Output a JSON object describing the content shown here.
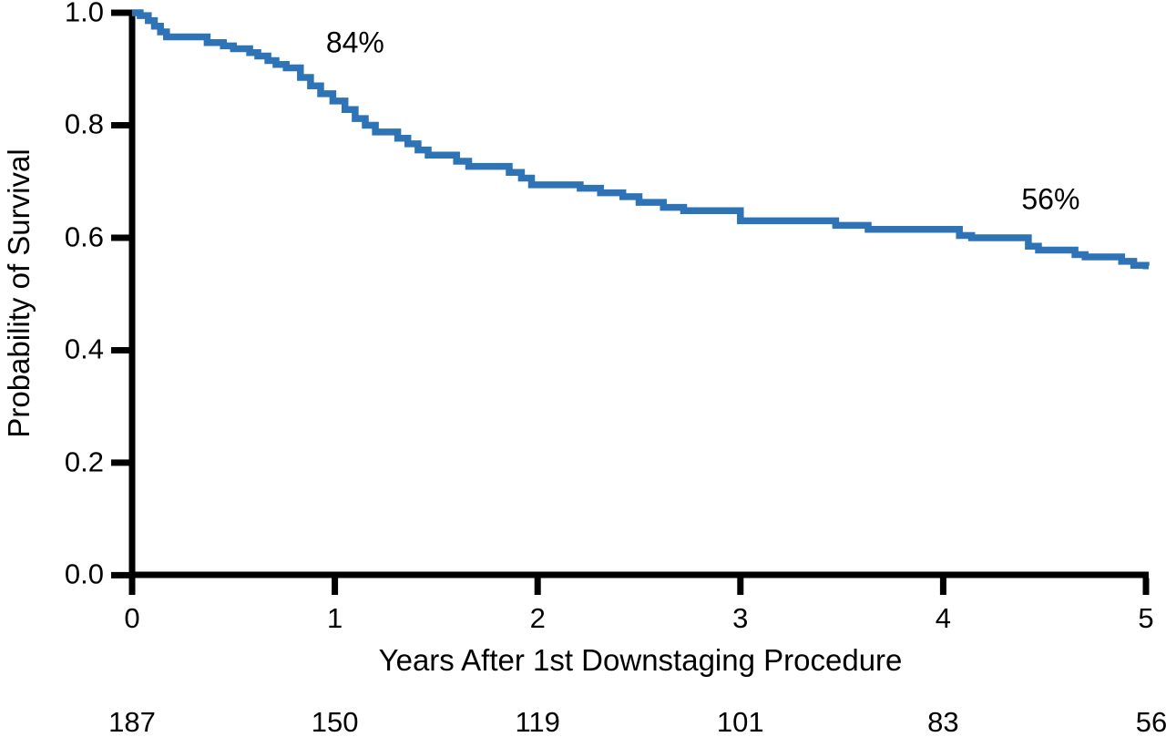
{
  "chart_data": {
    "type": "line",
    "variant": "kaplan_meier_step_curve",
    "title": "",
    "xlabel": "Years After 1st Downstaging Procedure",
    "ylabel": "Probability of Survival",
    "xlim": [
      0,
      5
    ],
    "ylim": [
      0.0,
      1.0
    ],
    "grid": false,
    "legend": "none",
    "x_tick_values": [
      0,
      1,
      2,
      3,
      4,
      5
    ],
    "x_tick_labels": [
      "0",
      "1",
      "2",
      "3",
      "4",
      "5"
    ],
    "y_tick_values": [
      1.0,
      0.8,
      0.6,
      0.4,
      0.2,
      0.0
    ],
    "y_tick_labels": [
      "1.0",
      "0.8",
      "0.6",
      "0.4",
      "0.2",
      "0.0"
    ],
    "line_color": "#2d73b6",
    "axis_color": "#000000",
    "annotations": [
      {
        "label": "84%",
        "x": 1.1,
        "y": 0.947
      },
      {
        "label": "56%",
        "x": 4.53,
        "y": 0.668
      }
    ],
    "series": [
      {
        "points": [
          [
            0.0,
            1.0
          ],
          [
            0.04,
            0.995
          ],
          [
            0.08,
            0.986
          ],
          [
            0.11,
            0.976
          ],
          [
            0.14,
            0.966
          ],
          [
            0.17,
            0.957
          ],
          [
            0.37,
            0.947
          ],
          [
            0.45,
            0.941
          ],
          [
            0.5,
            0.936
          ],
          [
            0.58,
            0.929
          ],
          [
            0.62,
            0.923
          ],
          [
            0.67,
            0.915
          ],
          [
            0.71,
            0.908
          ],
          [
            0.76,
            0.902
          ],
          [
            0.83,
            0.885
          ],
          [
            0.88,
            0.87
          ],
          [
            0.93,
            0.856
          ],
          [
            0.99,
            0.843
          ],
          [
            1.05,
            0.828
          ],
          [
            1.1,
            0.812
          ],
          [
            1.15,
            0.8
          ],
          [
            1.2,
            0.788
          ],
          [
            1.31,
            0.777
          ],
          [
            1.36,
            0.767
          ],
          [
            1.41,
            0.756
          ],
          [
            1.46,
            0.747
          ],
          [
            1.6,
            0.736
          ],
          [
            1.66,
            0.727
          ],
          [
            1.86,
            0.716
          ],
          [
            1.92,
            0.706
          ],
          [
            1.97,
            0.694
          ],
          [
            2.21,
            0.688
          ],
          [
            2.31,
            0.68
          ],
          [
            2.42,
            0.673
          ],
          [
            2.5,
            0.663
          ],
          [
            2.62,
            0.654
          ],
          [
            2.72,
            0.648
          ],
          [
            3.0,
            0.63
          ],
          [
            3.47,
            0.622
          ],
          [
            3.63,
            0.615
          ],
          [
            4.08,
            0.604
          ],
          [
            4.14,
            0.6
          ],
          [
            4.42,
            0.585
          ],
          [
            4.47,
            0.578
          ],
          [
            4.65,
            0.57
          ],
          [
            4.7,
            0.566
          ],
          [
            4.88,
            0.558
          ],
          [
            4.94,
            0.551
          ],
          [
            5.0,
            0.55
          ]
        ]
      }
    ],
    "numbers_at_risk": {
      "x_values": [
        0,
        1,
        2,
        3,
        4,
        5
      ],
      "labels": [
        "187",
        "150",
        "119",
        "101",
        "83",
        "56"
      ]
    }
  }
}
